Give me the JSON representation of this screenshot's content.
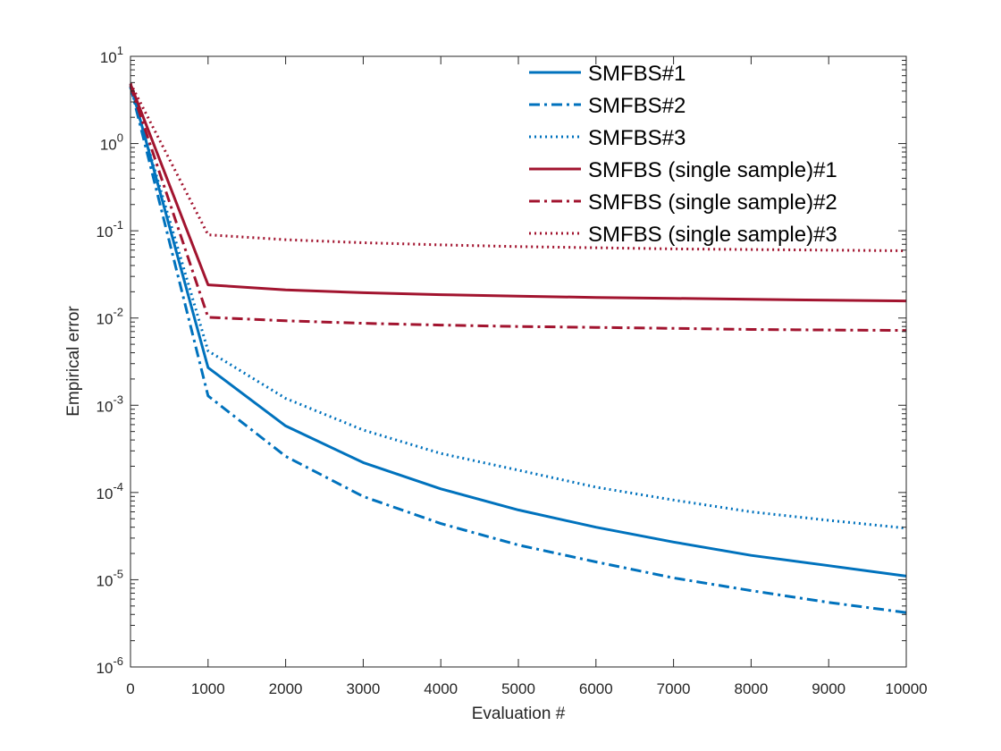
{
  "chart_data": {
    "type": "line",
    "title": "",
    "xlabel": "Evaluation #",
    "ylabel": "Empirical error",
    "xlim": [
      0,
      10000
    ],
    "ylim_exponents": [
      -6,
      1
    ],
    "yscale": "log",
    "x_ticks": [
      "0",
      "1000",
      "2000",
      "3000",
      "4000",
      "5000",
      "6000",
      "7000",
      "8000",
      "9000",
      "10000"
    ],
    "y_ticks": [
      {
        "base": "10",
        "exp": "1"
      },
      {
        "base": "10",
        "exp": "0"
      },
      {
        "base": "10",
        "exp": "-1"
      },
      {
        "base": "10",
        "exp": "-2"
      },
      {
        "base": "10",
        "exp": "-3"
      },
      {
        "base": "10",
        "exp": "-4"
      },
      {
        "base": "10",
        "exp": "-5"
      },
      {
        "base": "10",
        "exp": "-6"
      }
    ],
    "legend_position": "top-right",
    "x": [
      0,
      1000,
      2000,
      3000,
      4000,
      5000,
      6000,
      7000,
      8000,
      9000,
      10000
    ],
    "series": [
      {
        "name": "SMFBS#1",
        "color": "#0072BD",
        "dash": "solid",
        "values": [
          4.8,
          0.0027,
          0.00058,
          0.00022,
          0.00011,
          6.3e-05,
          4e-05,
          2.7e-05,
          1.9e-05,
          1.45e-05,
          1.1e-05
        ]
      },
      {
        "name": "SMFBS#2",
        "color": "#0072BD",
        "dash": "dashdot",
        "values": [
          4.5,
          0.00128,
          0.00026,
          9e-05,
          4.4e-05,
          2.5e-05,
          1.6e-05,
          1.05e-05,
          7.5e-06,
          5.5e-06,
          4.2e-06
        ]
      },
      {
        "name": "SMFBS#3",
        "color": "#0072BD",
        "dash": "dotted",
        "values": [
          4.4,
          0.0042,
          0.0012,
          0.00052,
          0.00028,
          0.00018,
          0.000115,
          8.2e-05,
          6e-05,
          4.8e-05,
          3.9e-05
        ]
      },
      {
        "name": "SMFBS (single sample)#1",
        "color": "#A2142F",
        "dash": "solid",
        "values": [
          4.8,
          0.024,
          0.021,
          0.0195,
          0.0185,
          0.0178,
          0.0172,
          0.0168,
          0.0164,
          0.016,
          0.0157
        ]
      },
      {
        "name": "SMFBS (single sample)#2",
        "color": "#A2142F",
        "dash": "dashdot",
        "values": [
          4.6,
          0.0102,
          0.0093,
          0.0087,
          0.0083,
          0.008,
          0.0078,
          0.0076,
          0.0074,
          0.0073,
          0.0072
        ]
      },
      {
        "name": "SMFBS (single sample)#3",
        "color": "#A2142F",
        "dash": "dotted",
        "values": [
          4.9,
          0.09,
          0.079,
          0.073,
          0.069,
          0.066,
          0.064,
          0.062,
          0.061,
          0.06,
          0.059
        ]
      }
    ]
  }
}
